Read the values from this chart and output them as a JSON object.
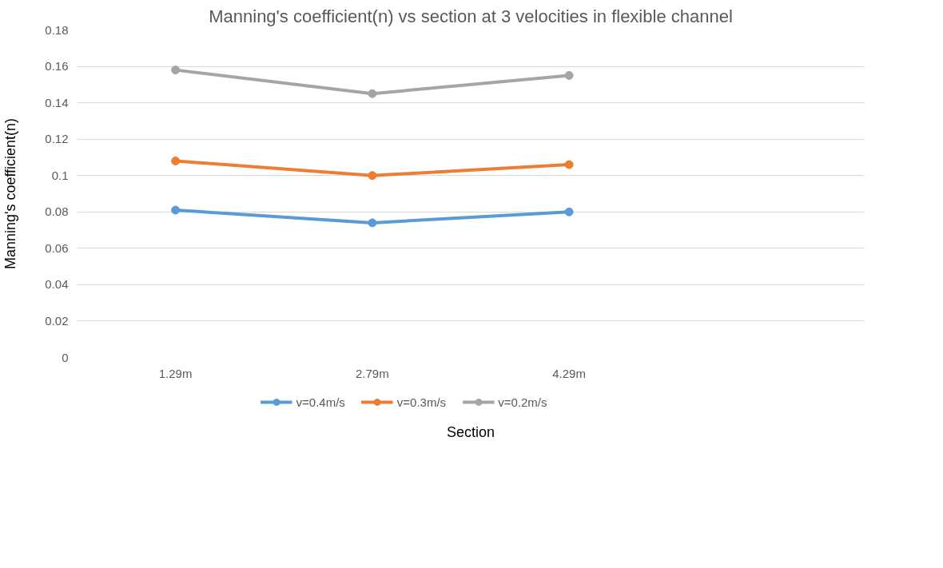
{
  "chart_data": {
    "type": "line",
    "title": "Manning's coefficient(n) vs section at 3 velocities in flexible channel",
    "xlabel": "Section",
    "ylabel": "Manning's coefficient(n)",
    "categories": [
      "1.29m",
      "2.79m",
      "4.29m",
      null
    ],
    "series": [
      {
        "name": "v=0.4m/s",
        "color": "#5b9bd5",
        "values": [
          0.081,
          0.074,
          0.08,
          null
        ]
      },
      {
        "name": "v=0.3m/s",
        "color": "#ed7d31",
        "values": [
          0.108,
          0.1,
          0.106,
          null
        ]
      },
      {
        "name": "v=0.2m/s",
        "color": "#a5a5a5",
        "values": [
          0.158,
          0.145,
          0.155,
          null
        ]
      }
    ],
    "ylim": [
      0,
      0.18
    ],
    "yticks": [
      0,
      0.02,
      0.04,
      0.06,
      0.08,
      {
        "value": 0.1,
        "label": "0.1"
      },
      0.12,
      0.14,
      0.16,
      0.18
    ],
    "grid": "y",
    "legend": "bottom",
    "marker": "circle",
    "line_style": "solid"
  }
}
